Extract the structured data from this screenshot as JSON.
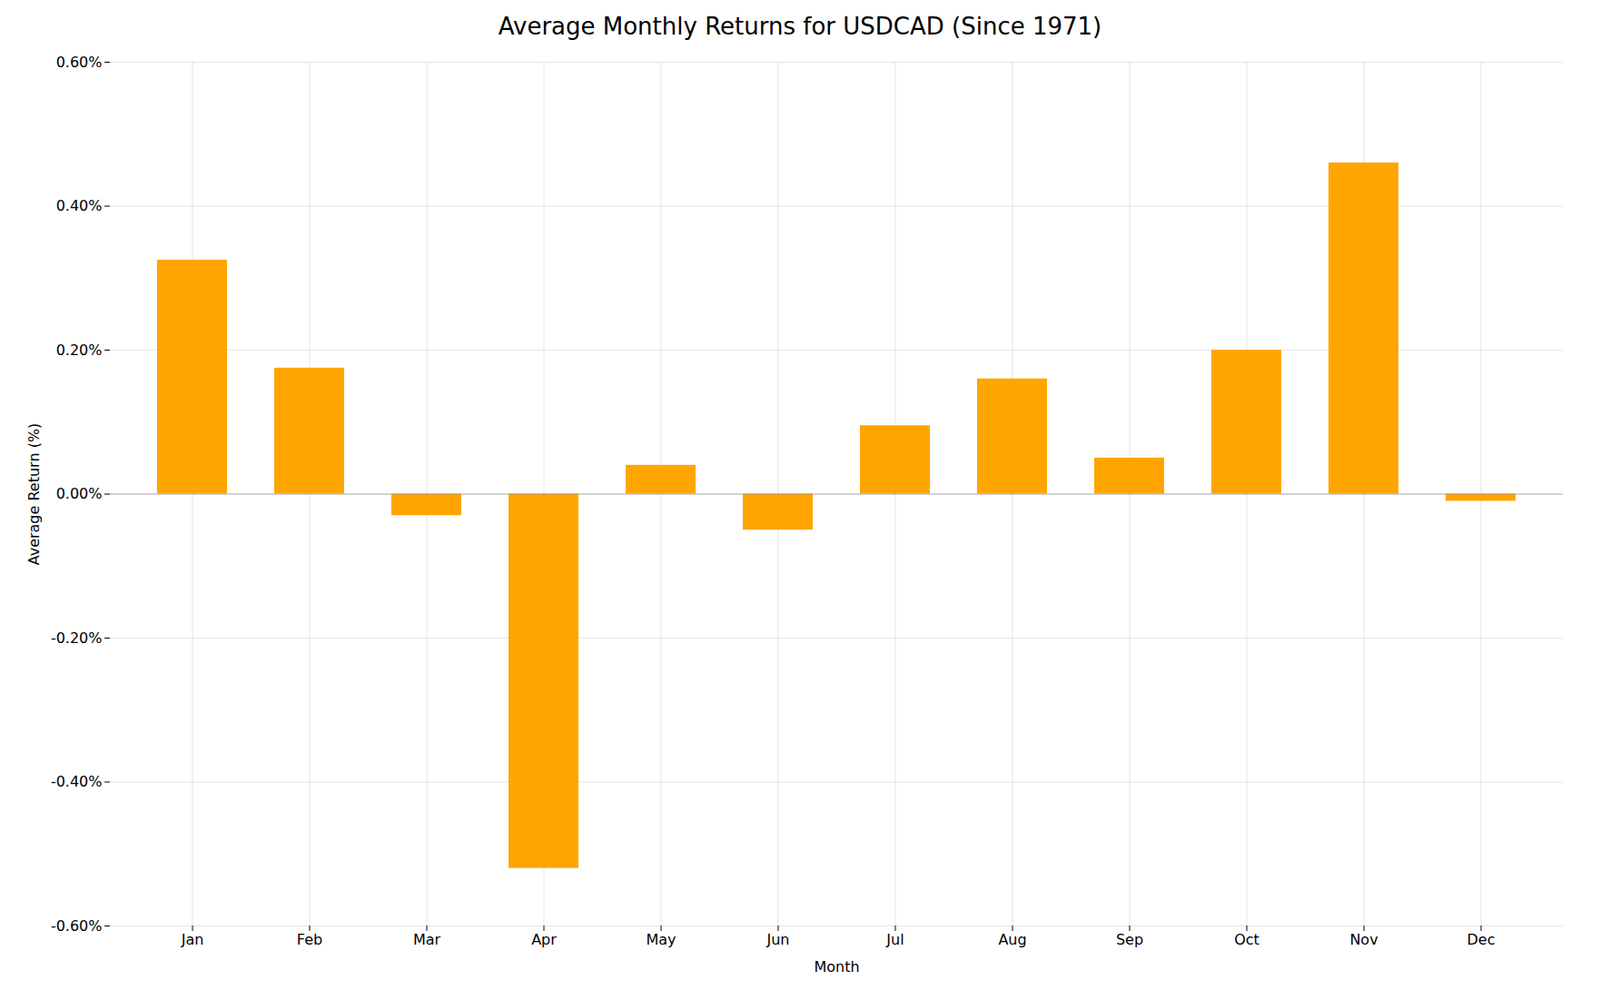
{
  "chart_data": {
    "type": "bar",
    "title": "Average Monthly Returns for USDCAD (Since 1971)",
    "xlabel": "Month",
    "ylabel": "Average Return (%)",
    "categories": [
      "Jan",
      "Feb",
      "Mar",
      "Apr",
      "May",
      "Jun",
      "Jul",
      "Aug",
      "Sep",
      "Oct",
      "Nov",
      "Dec"
    ],
    "values": [
      0.325,
      0.175,
      -0.03,
      -0.52,
      0.04,
      -0.05,
      0.095,
      0.16,
      0.05,
      0.2,
      0.46,
      -0.01
    ],
    "color": "#FFA500",
    "ylim": [
      -0.6,
      0.6
    ],
    "yticks": [
      {
        "value": -0.6,
        "label": "-0.60%"
      },
      {
        "value": -0.4,
        "label": "-0.40%"
      },
      {
        "value": -0.2,
        "label": "-0.20%"
      },
      {
        "value": 0.0,
        "label": "0.00%"
      },
      {
        "value": 0.2,
        "label": "0.20%"
      },
      {
        "value": 0.4,
        "label": "0.40%"
      },
      {
        "value": 0.6,
        "label": "0.60%"
      }
    ],
    "grid": true
  }
}
